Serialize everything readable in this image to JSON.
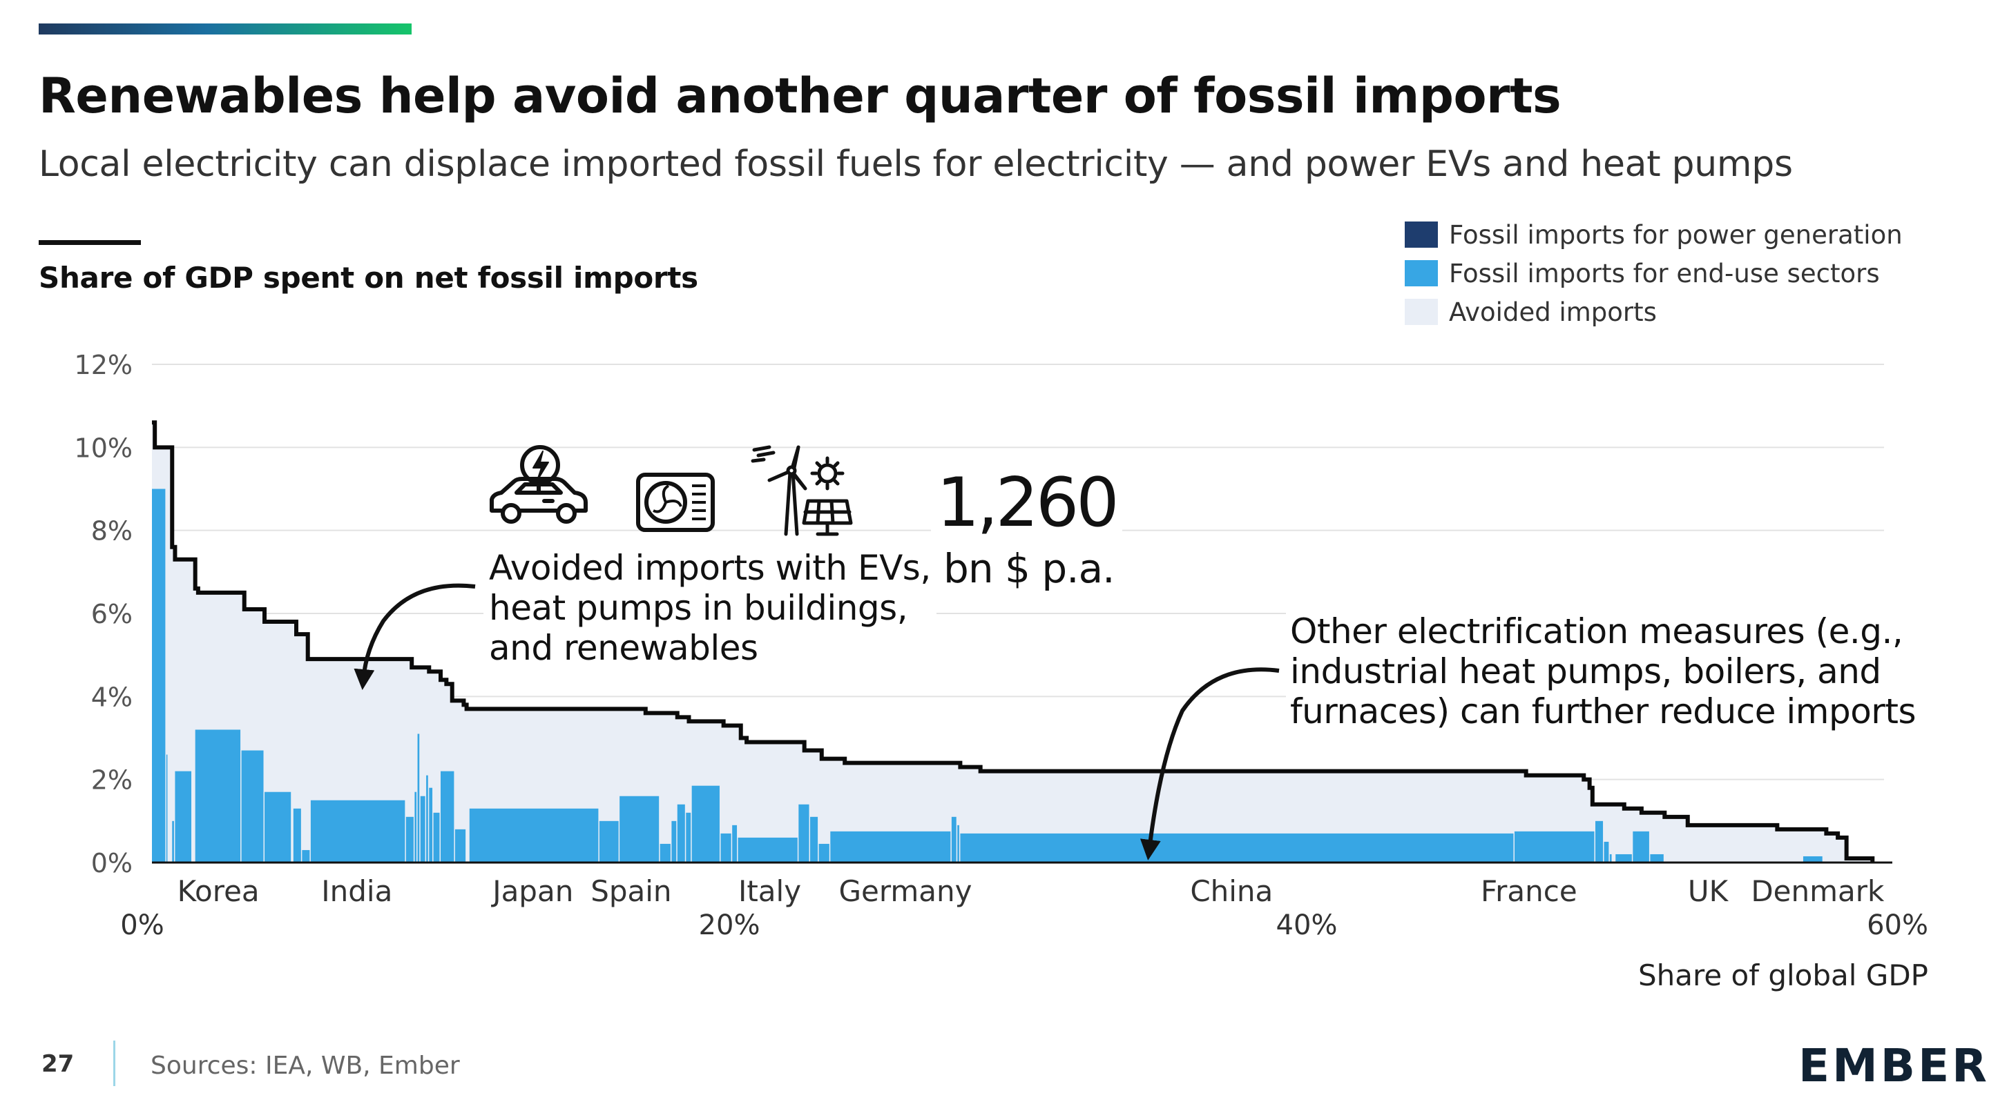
{
  "title": "Renewables help avoid another quarter of fossil imports",
  "subtitle": "Local electricity can displace imported fossil fuels for electricity — and power EVs and heat pumps",
  "footer": {
    "page": "27",
    "sources": "Sources: IEA, WB, Ember",
    "logo": "EMBER"
  },
  "colors": {
    "power_gen": "#1e3d6e",
    "end_use": "#37a6e4",
    "avoided": "#e9eef6",
    "line": "#0a0a0a"
  },
  "icons": [
    "electric-car-icon",
    "heat-pump-icon",
    "wind-solar-icon"
  ],
  "annotations": {
    "callout1": [
      "Avoided imports with EVs,",
      "heat pumps in buildings,",
      "and renewables"
    ],
    "big_number": "1,260",
    "big_unit": "bn $ p.a.",
    "callout2": [
      "Other electrification measures (e.g.,",
      "industrial heat pumps, boilers, and",
      "furnaces) can further reduce imports"
    ]
  },
  "chart_data": {
    "type": "area",
    "ylabel": "Share of GDP spent on net fossil imports",
    "xlabel": "Share of global GDP",
    "ylim": [
      0,
      12
    ],
    "xlim": [
      0,
      60
    ],
    "y_ticks": [
      "0%",
      "2%",
      "4%",
      "6%",
      "8%",
      "10%",
      "12%"
    ],
    "x_ticks": [
      {
        "x": 0,
        "label": "0%"
      },
      {
        "x": 20,
        "label": "20%"
      },
      {
        "x": 40,
        "label": "40%"
      },
      {
        "x": 60,
        "label": "60%"
      }
    ],
    "country_labels": [
      {
        "x": 2.3,
        "label": "Korea"
      },
      {
        "x": 7.1,
        "label": "India"
      },
      {
        "x": 13.2,
        "label": "Japan"
      },
      {
        "x": 16.6,
        "label": "Spain"
      },
      {
        "x": 21.4,
        "label": "Italy"
      },
      {
        "x": 26.1,
        "label": "Germany"
      },
      {
        "x": 37.4,
        "label": "China"
      },
      {
        "x": 47.7,
        "label": "France"
      },
      {
        "x": 53.9,
        "label": "UK"
      },
      {
        "x": 57.7,
        "label": "Denmark"
      }
    ],
    "grid": true,
    "legend": "top-right",
    "series": [
      {
        "name": "Fossil imports for power generation",
        "key": "power_gen"
      },
      {
        "name": "Fossil imports for end-use sectors",
        "key": "end_use"
      },
      {
        "name": "Avoided imports",
        "key": "avoided"
      }
    ],
    "total_step": [
      [
        0,
        10.6
      ],
      [
        0.1,
        10.0
      ],
      [
        0.6,
        10.0
      ],
      [
        0.7,
        7.6
      ],
      [
        0.8,
        7.3
      ],
      [
        1.4,
        7.3
      ],
      [
        1.5,
        6.6
      ],
      [
        1.6,
        6.5
      ],
      [
        3.1,
        6.5
      ],
      [
        3.2,
        6.1
      ],
      [
        3.8,
        6.1
      ],
      [
        3.9,
        5.8
      ],
      [
        4.9,
        5.8
      ],
      [
        5.0,
        5.5
      ],
      [
        5.3,
        5.5
      ],
      [
        5.4,
        4.9
      ],
      [
        8.8,
        4.9
      ],
      [
        9.0,
        4.7
      ],
      [
        9.6,
        4.6
      ],
      [
        10.0,
        4.4
      ],
      [
        10.2,
        4.3
      ],
      [
        10.4,
        3.9
      ],
      [
        10.8,
        3.8
      ],
      [
        10.9,
        3.7
      ],
      [
        13.0,
        3.7
      ],
      [
        16.9,
        3.7
      ],
      [
        17.1,
        3.6
      ],
      [
        18.0,
        3.6
      ],
      [
        18.2,
        3.5
      ],
      [
        18.6,
        3.4
      ],
      [
        19.6,
        3.4
      ],
      [
        19.8,
        3.3
      ],
      [
        20.2,
        3.3
      ],
      [
        20.4,
        3.0
      ],
      [
        20.6,
        2.9
      ],
      [
        22.4,
        2.9
      ],
      [
        22.6,
        2.7
      ],
      [
        23.0,
        2.7
      ],
      [
        23.2,
        2.5
      ],
      [
        23.8,
        2.5
      ],
      [
        24.0,
        2.4
      ],
      [
        27.6,
        2.4
      ],
      [
        28.0,
        2.3
      ],
      [
        28.5,
        2.3
      ],
      [
        28.7,
        2.2
      ],
      [
        47.3,
        2.2
      ],
      [
        47.6,
        2.1
      ],
      [
        49.4,
        2.1
      ],
      [
        49.6,
        2.0
      ],
      [
        49.8,
        1.8
      ],
      [
        49.9,
        1.4
      ],
      [
        51.0,
        1.3
      ],
      [
        51.6,
        1.2
      ],
      [
        52.4,
        1.1
      ],
      [
        53.0,
        1.1
      ],
      [
        53.2,
        0.9
      ],
      [
        56.1,
        0.9
      ],
      [
        56.3,
        0.8
      ],
      [
        57.9,
        0.8
      ],
      [
        58.0,
        0.7
      ],
      [
        58.2,
        0.7
      ],
      [
        58.4,
        0.6
      ],
      [
        58.6,
        0.6
      ],
      [
        58.7,
        0.1
      ],
      [
        59.6,
        0.1
      ],
      [
        59.6,
        0.0
      ]
    ],
    "end_use_bars": [
      [
        0.0,
        0.5,
        9.0
      ],
      [
        0.5,
        0.55,
        2.6
      ],
      [
        0.7,
        0.8,
        1.0
      ],
      [
        0.8,
        1.4,
        2.2
      ],
      [
        1.5,
        3.1,
        3.2
      ],
      [
        3.1,
        3.9,
        2.7
      ],
      [
        3.9,
        4.85,
        1.7
      ],
      [
        4.9,
        5.2,
        1.3
      ],
      [
        5.2,
        5.5,
        0.3
      ],
      [
        5.5,
        8.8,
        1.5
      ],
      [
        8.8,
        9.1,
        1.1
      ],
      [
        9.1,
        9.2,
        1.7
      ],
      [
        9.2,
        9.3,
        3.1
      ],
      [
        9.3,
        9.5,
        1.6
      ],
      [
        9.5,
        9.6,
        2.1
      ],
      [
        9.6,
        9.75,
        1.8
      ],
      [
        9.75,
        10.0,
        1.2
      ],
      [
        10.0,
        10.5,
        2.2
      ],
      [
        10.5,
        10.9,
        0.8
      ],
      [
        11.0,
        15.5,
        1.3
      ],
      [
        15.5,
        16.2,
        1.0
      ],
      [
        16.2,
        17.6,
        1.6
      ],
      [
        17.6,
        18.0,
        0.45
      ],
      [
        18.0,
        18.2,
        1.0
      ],
      [
        18.2,
        18.5,
        1.4
      ],
      [
        18.5,
        18.7,
        1.2
      ],
      [
        18.7,
        19.7,
        1.85
      ],
      [
        19.7,
        20.1,
        0.7
      ],
      [
        20.1,
        20.3,
        0.9
      ],
      [
        20.3,
        22.4,
        0.6
      ],
      [
        22.4,
        22.8,
        1.4
      ],
      [
        22.8,
        23.1,
        1.1
      ],
      [
        23.1,
        23.5,
        0.45
      ],
      [
        23.5,
        27.7,
        0.75
      ],
      [
        27.7,
        27.9,
        1.1
      ],
      [
        27.9,
        28.0,
        0.9
      ],
      [
        28.0,
        47.2,
        0.7
      ],
      [
        47.2,
        50.0,
        0.75
      ],
      [
        50.0,
        50.3,
        1.0
      ],
      [
        50.3,
        50.5,
        0.5
      ],
      [
        50.5,
        50.6,
        0.2
      ],
      [
        50.7,
        51.3,
        0.2
      ],
      [
        51.3,
        51.9,
        0.75
      ],
      [
        51.9,
        52.4,
        0.2
      ],
      [
        57.2,
        57.9,
        0.15
      ]
    ]
  }
}
